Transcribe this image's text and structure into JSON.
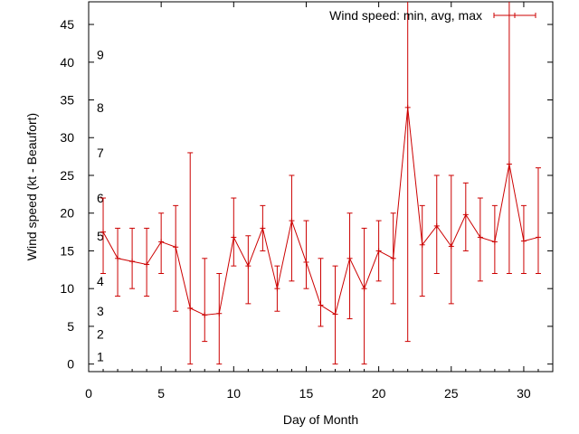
{
  "chart_data": {
    "type": "line",
    "xlabel": "Day of Month",
    "ylabel": "Wind speed (kt - Beaufort)",
    "xlim": [
      0,
      32
    ],
    "ylim": [
      -1,
      48
    ],
    "xticks": [
      0,
      5,
      10,
      15,
      20,
      25,
      30
    ],
    "yticks": [
      0,
      5,
      10,
      15,
      20,
      25,
      30,
      35,
      40,
      45
    ],
    "grid": false,
    "legend_position": "top-right",
    "series_color": "#cc0000",
    "series": [
      {
        "name": "Wind speed: min, avg, max",
        "x": [
          1,
          2,
          3,
          4,
          5,
          6,
          7,
          8,
          9,
          10,
          11,
          12,
          13,
          14,
          15,
          16,
          17,
          18,
          19,
          20,
          21,
          22,
          23,
          24,
          25,
          26,
          27,
          28,
          29,
          30,
          31
        ],
        "avg": [
          17.5,
          14,
          13.6,
          13.2,
          16.2,
          15.5,
          7.4,
          6.5,
          6.7,
          16.8,
          13,
          18,
          10,
          19,
          13.5,
          7.8,
          6.6,
          14,
          10,
          15,
          14,
          34,
          15.8,
          18.3,
          15.6,
          19.8,
          16.8,
          16.2,
          26.5,
          16.3,
          16.8
        ],
        "min": [
          12,
          9,
          10,
          9,
          12,
          7,
          0,
          3,
          0,
          13,
          8,
          15,
          7,
          11,
          10,
          5,
          0,
          6,
          0,
          11,
          8,
          3,
          9,
          12,
          8,
          15,
          11,
          12,
          12,
          12,
          12
        ],
        "max": [
          22,
          18,
          18,
          18,
          20,
          21,
          28,
          14,
          12,
          22,
          17,
          21,
          13,
          25,
          19,
          14,
          13,
          20,
          18,
          19,
          20,
          48,
          21,
          25,
          25,
          24,
          22,
          21,
          48,
          21,
          26
        ]
      }
    ],
    "beaufort_labels": [
      {
        "label": "1",
        "y": 1
      },
      {
        "label": "2",
        "y": 4
      },
      {
        "label": "3",
        "y": 7
      },
      {
        "label": "4",
        "y": 11
      },
      {
        "label": "5",
        "y": 17
      },
      {
        "label": "6",
        "y": 22
      },
      {
        "label": "7",
        "y": 28
      },
      {
        "label": "8",
        "y": 34
      },
      {
        "label": "9",
        "y": 41
      }
    ]
  }
}
